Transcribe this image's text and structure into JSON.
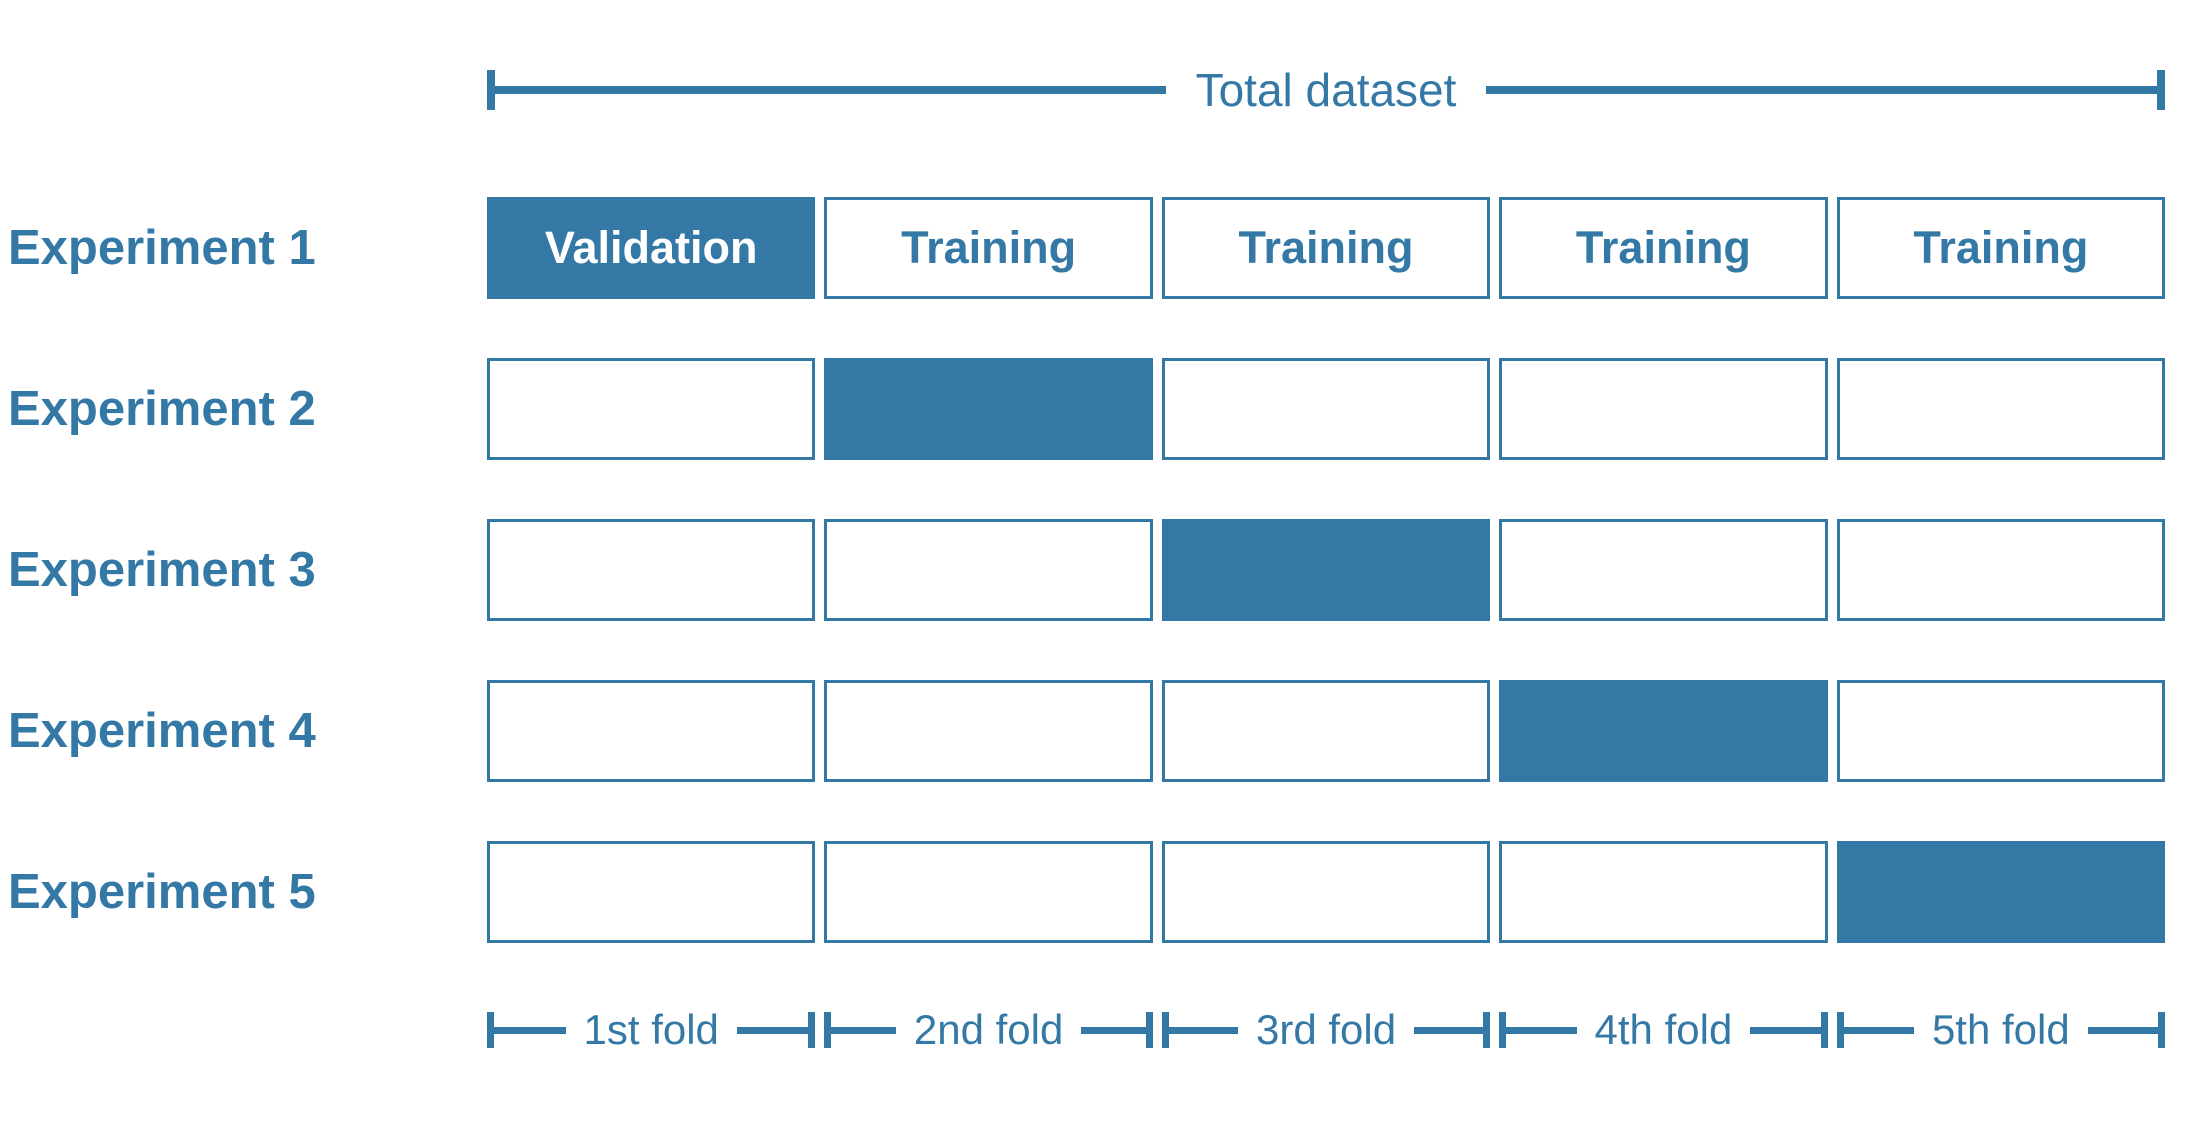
{
  "colors": {
    "accent": "#3478A6",
    "background": "#FFFFFF",
    "validation_text": "#FFFFFF"
  },
  "header": {
    "total_dataset_label": "Total dataset"
  },
  "experiments": [
    {
      "label": "Experiment 1",
      "cells": [
        {
          "text": "Validation",
          "role": "validation"
        },
        {
          "text": "Training",
          "role": "training"
        },
        {
          "text": "Training",
          "role": "training"
        },
        {
          "text": "Training",
          "role": "training"
        },
        {
          "text": "Training",
          "role": "training"
        }
      ]
    },
    {
      "label": "Experiment 2",
      "cells": [
        {
          "text": "",
          "role": "training"
        },
        {
          "text": "",
          "role": "validation"
        },
        {
          "text": "",
          "role": "training"
        },
        {
          "text": "",
          "role": "training"
        },
        {
          "text": "",
          "role": "training"
        }
      ]
    },
    {
      "label": "Experiment 3",
      "cells": [
        {
          "text": "",
          "role": "training"
        },
        {
          "text": "",
          "role": "training"
        },
        {
          "text": "",
          "role": "validation"
        },
        {
          "text": "",
          "role": "training"
        },
        {
          "text": "",
          "role": "training"
        }
      ]
    },
    {
      "label": "Experiment 4",
      "cells": [
        {
          "text": "",
          "role": "training"
        },
        {
          "text": "",
          "role": "training"
        },
        {
          "text": "",
          "role": "training"
        },
        {
          "text": "",
          "role": "validation"
        },
        {
          "text": "",
          "role": "training"
        }
      ]
    },
    {
      "label": "Experiment 5",
      "cells": [
        {
          "text": "",
          "role": "training"
        },
        {
          "text": "",
          "role": "training"
        },
        {
          "text": "",
          "role": "training"
        },
        {
          "text": "",
          "role": "training"
        },
        {
          "text": "",
          "role": "validation"
        }
      ]
    }
  ],
  "fold_axis": {
    "labels": [
      "1st fold",
      "2nd fold",
      "3rd fold",
      "4th fold",
      "5th fold"
    ]
  }
}
